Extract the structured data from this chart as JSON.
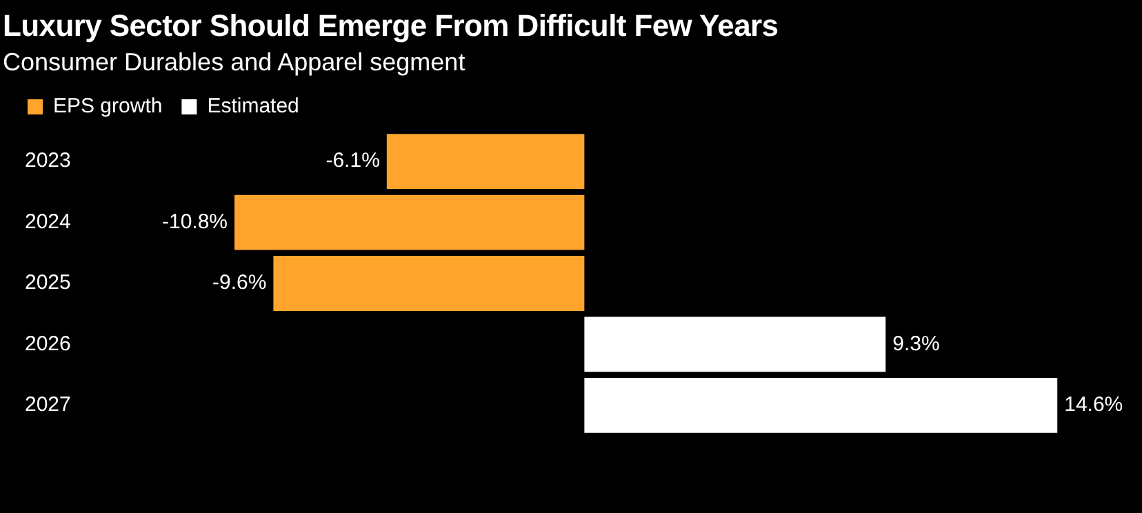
{
  "chart_data": {
    "type": "bar",
    "orientation": "horizontal",
    "title": "Luxury Sector Should Emerge From Difficult Few Years",
    "subtitle": "Consumer Durables and Apparel segment",
    "categories": [
      "2023",
      "2024",
      "2025",
      "2026",
      "2027"
    ],
    "series": [
      {
        "name": "EPS growth",
        "color": "#ffa42d",
        "values": [
          -6.1,
          -10.8,
          -9.6,
          null,
          null
        ],
        "value_labels": [
          "-6.1%",
          "-10.8%",
          "-9.6%",
          null,
          null
        ]
      },
      {
        "name": "Estimated",
        "color": "#ffffff",
        "values": [
          null,
          null,
          null,
          9.3,
          14.6
        ],
        "value_labels": [
          null,
          null,
          null,
          "9.3%",
          "14.6%"
        ]
      }
    ],
    "legend": "top left",
    "tick_labels": "y"
  }
}
